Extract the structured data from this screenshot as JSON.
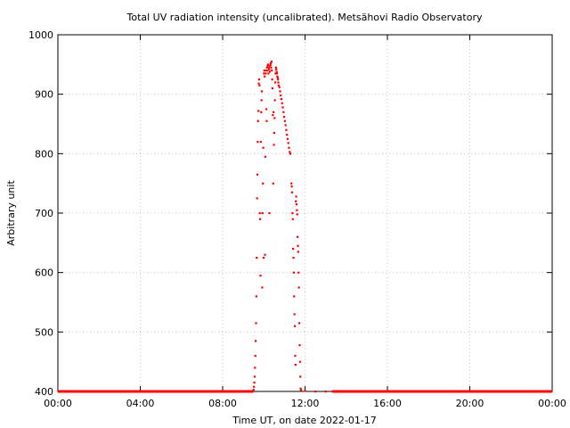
{
  "chart_data": {
    "type": "scatter",
    "title": "Total UV radiation intensity (uncalibrated). Metsähovi Radio Observatory",
    "xlabel": "Time UT, on date 2022-01-17",
    "ylabel": "Arbitrary unit",
    "xlim": [
      "00:00",
      "24:00"
    ],
    "ylim": [
      400,
      1000
    ],
    "x_ticks": [
      "00:00",
      "04:00",
      "08:00",
      "12:00",
      "16:00",
      "20:00",
      "00:00"
    ],
    "y_ticks": [
      "400",
      "500",
      "600",
      "700",
      "800",
      "900",
      "1000"
    ],
    "grid": true,
    "legend": "none",
    "series": [
      {
        "color": "#ff0000",
        "marker": "dot",
        "baseline": {
          "value": 400,
          "segments": [
            [
              "00:00",
              "09:30"
            ],
            [
              "13:20",
              "24:00"
            ]
          ]
        },
        "points": [
          [
            "09:30",
            403
          ],
          [
            "09:31",
            408
          ],
          [
            "09:32",
            415
          ],
          [
            "09:33",
            425
          ],
          [
            "09:34",
            440
          ],
          [
            "09:35",
            460
          ],
          [
            "09:36",
            485
          ],
          [
            "09:37",
            515
          ],
          [
            "09:38",
            560
          ],
          [
            "09:39",
            625
          ],
          [
            "09:40",
            725
          ],
          [
            "09:41",
            765
          ],
          [
            "09:42",
            820
          ],
          [
            "09:43",
            855
          ],
          [
            "09:44",
            872
          ],
          [
            "09:45",
            918
          ],
          [
            "09:46",
            925
          ],
          [
            "09:47",
            915
          ],
          [
            "09:48",
            700
          ],
          [
            "09:49",
            690
          ],
          [
            "09:50",
            595
          ],
          [
            "09:51",
            820
          ],
          [
            "09:52",
            870
          ],
          [
            "09:53",
            890
          ],
          [
            "09:54",
            905
          ],
          [
            "09:55",
            575
          ],
          [
            "09:56",
            700
          ],
          [
            "09:57",
            750
          ],
          [
            "09:58",
            810
          ],
          [
            "09:59",
            625
          ],
          [
            "10:00",
            935
          ],
          [
            "10:01",
            940
          ],
          [
            "10:02",
            930
          ],
          [
            "10:03",
            630
          ],
          [
            "10:04",
            795
          ],
          [
            "10:05",
            935
          ],
          [
            "10:06",
            940
          ],
          [
            "10:07",
            875
          ],
          [
            "10:08",
            855
          ],
          [
            "10:09",
            945
          ],
          [
            "10:10",
            940
          ],
          [
            "10:11",
            948
          ],
          [
            "10:12",
            950
          ],
          [
            "10:13",
            935
          ],
          [
            "10:14",
            945
          ],
          [
            "10:15",
            942
          ],
          [
            "10:16",
            700
          ],
          [
            "10:17",
            938
          ],
          [
            "10:18",
            948
          ],
          [
            "10:19",
            950
          ],
          [
            "10:20",
            952
          ],
          [
            "10:21",
            945
          ],
          [
            "10:22",
            955
          ],
          [
            "10:23",
            940
          ],
          [
            "10:24",
            925
          ],
          [
            "10:25",
            910
          ],
          [
            "10:26",
            865
          ],
          [
            "10:27",
            750
          ],
          [
            "10:28",
            870
          ],
          [
            "10:29",
            815
          ],
          [
            "10:30",
            835
          ],
          [
            "10:31",
            860
          ],
          [
            "10:32",
            890
          ],
          [
            "10:33",
            920
          ],
          [
            "10:34",
            935
          ],
          [
            "10:35",
            945
          ],
          [
            "10:36",
            942
          ],
          [
            "10:37",
            938
          ],
          [
            "10:38",
            935
          ],
          [
            "10:39",
            930
          ],
          [
            "10:40",
            928
          ],
          [
            "10:41",
            925
          ],
          [
            "10:42",
            920
          ],
          [
            "10:43",
            915
          ],
          [
            "10:45",
            912
          ],
          [
            "10:47",
            905
          ],
          [
            "10:49",
            898
          ],
          [
            "10:51",
            892
          ],
          [
            "10:53",
            885
          ],
          [
            "10:55",
            878
          ],
          [
            "10:57",
            870
          ],
          [
            "10:59",
            862
          ],
          [
            "11:01",
            855
          ],
          [
            "11:03",
            848
          ],
          [
            "11:05",
            840
          ],
          [
            "11:07",
            832
          ],
          [
            "11:09",
            825
          ],
          [
            "11:11",
            818
          ],
          [
            "11:13",
            810
          ],
          [
            "11:15",
            803
          ],
          [
            "11:17",
            800
          ],
          [
            "11:20",
            750
          ],
          [
            "11:21",
            745
          ],
          [
            "11:22",
            735
          ],
          [
            "11:23",
            700
          ],
          [
            "11:24",
            690
          ],
          [
            "11:25",
            640
          ],
          [
            "11:26",
            625
          ],
          [
            "11:27",
            600
          ],
          [
            "11:28",
            560
          ],
          [
            "11:29",
            530
          ],
          [
            "11:30",
            510
          ],
          [
            "11:31",
            460
          ],
          [
            "11:32",
            445
          ],
          [
            "11:33",
            720
          ],
          [
            "11:34",
            728
          ],
          [
            "11:35",
            715
          ],
          [
            "11:36",
            705
          ],
          [
            "11:37",
            698
          ],
          [
            "11:38",
            660
          ],
          [
            "11:39",
            645
          ],
          [
            "11:40",
            635
          ],
          [
            "11:41",
            600
          ],
          [
            "11:42",
            575
          ],
          [
            "11:43",
            515
          ],
          [
            "11:44",
            478
          ],
          [
            "11:45",
            450
          ],
          [
            "11:46",
            425
          ],
          [
            "11:47",
            405
          ],
          [
            "11:48",
            402
          ],
          [
            "12:00",
            401
          ],
          [
            "12:30",
            400
          ],
          [
            "13:00",
            400
          ],
          [
            "13:20",
            400
          ]
        ]
      }
    ]
  }
}
